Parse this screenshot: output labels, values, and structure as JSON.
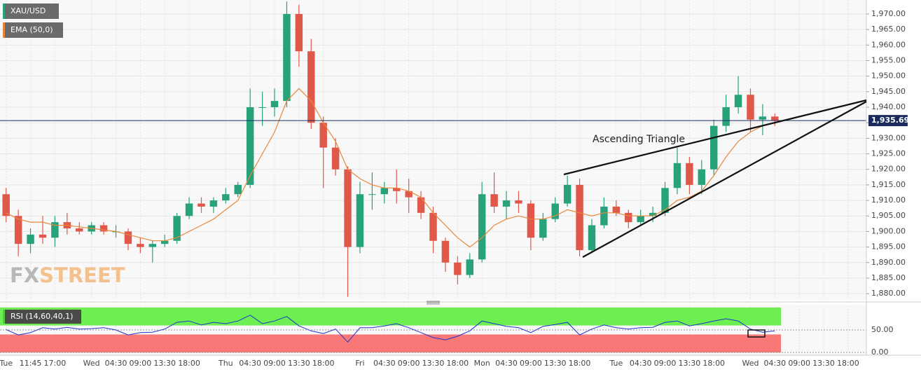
{
  "chart_data": {
    "type": "candlestick",
    "name": "XAU/USD",
    "annotation": "Ascending Triangle",
    "watermark": [
      "FX",
      "STREET"
    ],
    "up_color": "#27a27a",
    "down_color": "#e0584a",
    "grid": true,
    "categories": [
      "Tue",
      null,
      "11:45",
      null,
      "17:00",
      null,
      null,
      "Wed",
      null,
      "04:30",
      null,
      "09:00",
      null,
      "13:30",
      null,
      "18:00",
      null,
      null,
      "Thu",
      null,
      "04:30",
      null,
      "09:00",
      null,
      "13:30",
      null,
      "18:00",
      null,
      null,
      "Fri",
      null,
      "04:30",
      null,
      "09:00",
      null,
      "13:30",
      null,
      "18:00",
      null,
      "Mon",
      null,
      "04:30",
      null,
      "09:00",
      null,
      "13:30",
      null,
      "18:00",
      null,
      null,
      "Tue",
      null,
      "04:30",
      null,
      "09:00",
      null,
      "13:30",
      null,
      "18:00",
      null,
      null,
      "Wed",
      null,
      "04:30",
      null,
      "09:00",
      null,
      "13:30",
      null,
      "18:00",
      null
    ],
    "open": [
      1912,
      1905,
      1896,
      1899,
      1898,
      1903,
      1901,
      1900,
      1902,
      1900,
      1900,
      1896,
      1895,
      1896,
      1897,
      1905,
      1909,
      1908,
      1910,
      1912,
      1915,
      1940,
      1940,
      1942,
      1970,
      1958,
      1935,
      1927,
      1920,
      1895,
      1912,
      1912,
      1914,
      1913,
      1911,
      1906,
      1897,
      1890,
      1886,
      1891,
      1912,
      1908,
      1910,
      1909,
      1898,
      1904,
      1909,
      1915,
      1894,
      1902,
      1908,
      1906,
      1903,
      1905,
      1906,
      1914,
      1922,
      1915,
      1920,
      1934,
      1940,
      1944,
      1936,
      1937,
      null,
      null,
      null,
      null,
      null,
      null,
      null
    ],
    "high": [
      1914,
      1907,
      1901,
      1905,
      1905,
      1906,
      1903,
      1903,
      1903,
      1902,
      1901,
      1898,
      1897,
      1899,
      1906,
      1911,
      1911,
      1911,
      1914,
      1916,
      1946,
      1945,
      1946,
      1974,
      1973,
      1962,
      1937,
      1930,
      1921,
      1916,
      1919,
      1916,
      1920,
      1917,
      1913,
      1908,
      1898,
      1892,
      1893,
      1916,
      1919,
      1913,
      1913,
      1910,
      1906,
      1911,
      1918,
      1917,
      1904,
      1911,
      1910,
      1907,
      1907,
      1908,
      1916,
      1927,
      1924,
      1923,
      1936,
      1944,
      1950,
      1946,
      1941,
      1938,
      null,
      null,
      null,
      null,
      null,
      null,
      null
    ],
    "low": [
      1903,
      1892,
      1893,
      1896,
      1895,
      1899,
      1899,
      1899,
      1899,
      1898,
      1894,
      1893,
      1890,
      1895,
      1896,
      1904,
      1906,
      1906,
      1909,
      1911,
      1914,
      1934,
      1937,
      1940,
      1953,
      1933,
      1914,
      1918,
      1879,
      1893,
      1907,
      1909,
      1909,
      1906,
      1904,
      1893,
      1887,
      1883,
      1885,
      1890,
      1906,
      1904,
      1906,
      1894,
      1897,
      1903,
      1908,
      1892,
      1893,
      1901,
      1905,
      1901,
      1902,
      1903,
      1905,
      1912,
      1912,
      1912,
      1918,
      1932,
      1938,
      1932,
      1931,
      1934,
      null,
      null,
      null,
      null,
      null,
      null,
      null
    ],
    "close": [
      1905,
      1896,
      1899,
      1898,
      1903,
      1901,
      1900,
      1902,
      1900,
      1900,
      1896,
      1895,
      1896,
      1897,
      1905,
      1909,
      1908,
      1910,
      1912,
      1915,
      1940,
      1940,
      1942,
      1970,
      1958,
      1935,
      1927,
      1920,
      1895,
      1912,
      1912,
      1914,
      1913,
      1911,
      1906,
      1897,
      1890,
      1886,
      1891,
      1912,
      1908,
      1910,
      1909,
      1898,
      1904,
      1909,
      1915,
      1894,
      1902,
      1908,
      1906,
      1903,
      1905,
      1906,
      1914,
      1922,
      1915,
      1920,
      1934,
      1940,
      1944,
      1936,
      1937,
      1935.7,
      null,
      null,
      null,
      null,
      null,
      null,
      null
    ],
    "ema": {
      "name": "EMA (50,0)",
      "color": "#e8873a",
      "values": [
        1906,
        1904,
        1903,
        1903,
        1902,
        1902,
        1901.5,
        1901,
        1900.5,
        1900,
        1899,
        1898,
        1897,
        1897,
        1898,
        1900,
        1902,
        1904,
        1907,
        1910,
        1918,
        1925,
        1932,
        1942,
        1946,
        1942,
        1935,
        1929,
        1920,
        1917,
        1915,
        1914,
        1914,
        1913,
        1911,
        1906,
        1902,
        1898,
        1895,
        1898,
        1902,
        1904,
        1905,
        1904,
        1904,
        1905,
        1907,
        1906,
        1905,
        1906,
        1906,
        1905,
        1905,
        1905,
        1907,
        1910,
        1911,
        1913,
        1918,
        1924,
        1929,
        1932,
        1934,
        1935,
        null,
        null,
        null,
        null,
        null,
        null,
        null
      ]
    },
    "last_price": {
      "value": 1935.69,
      "label": "1,935.69"
    },
    "last_price_color": "#1b2b5e",
    "ylim": [
      1878,
      1974.5
    ],
    "yticks": [
      {
        "value": 1880,
        "label": "1,880.00"
      },
      {
        "value": 1885,
        "label": "1,885.00"
      },
      {
        "value": 1890,
        "label": "1,890.00"
      },
      {
        "value": 1895,
        "label": "1,895.00"
      },
      {
        "value": 1900,
        "label": "1,900.00"
      },
      {
        "value": 1905,
        "label": "1,905.00"
      },
      {
        "value": 1910,
        "label": "1,910.00"
      },
      {
        "value": 1915,
        "label": "1,915.00"
      },
      {
        "value": 1920,
        "label": "1,920.00"
      },
      {
        "value": 1925,
        "label": "1,925.00"
      },
      {
        "value": 1930,
        "label": "1,930.00"
      },
      {
        "value": 1935,
        "label": "1,935.00"
      },
      {
        "value": 1940,
        "label": "1,940.00"
      },
      {
        "value": 1945,
        "label": "1,945.00"
      },
      {
        "value": 1950,
        "label": "1,950.00"
      },
      {
        "value": 1955,
        "label": "1,955.00"
      },
      {
        "value": 1960,
        "label": "1,960.00"
      },
      {
        "value": 1965,
        "label": "1,965.00"
      },
      {
        "value": 1970,
        "label": "1,970.00"
      }
    ],
    "rsi": {
      "type": "line",
      "name": "RSI (14,60,40,1)",
      "color": "#1f33cc",
      "values": [
        51,
        39,
        44,
        55,
        52,
        56,
        52,
        53,
        55,
        50,
        39,
        44,
        45,
        52,
        67,
        70,
        61,
        67,
        64,
        70,
        83,
        64,
        70,
        80,
        59,
        48,
        42,
        52,
        23,
        55,
        55,
        59,
        64,
        55,
        44,
        33,
        28,
        36,
        48,
        70,
        64,
        58,
        55,
        44,
        58,
        62,
        67,
        39,
        52,
        61,
        55,
        52,
        55,
        56,
        67,
        70,
        59,
        64,
        70,
        75,
        70,
        52,
        45,
        48,
        null,
        null,
        null,
        null,
        null,
        null,
        null
      ],
      "ylim": [
        -3,
        103
      ],
      "yticks": [
        {
          "value": 50,
          "label": "50.00"
        },
        {
          "value": 0,
          "label": "0.00"
        }
      ],
      "bands": [
        {
          "from": 60,
          "to": 100,
          "color": "#6def52"
        },
        {
          "from": 0,
          "to": 40,
          "color": "#f87878"
        }
      ]
    }
  }
}
